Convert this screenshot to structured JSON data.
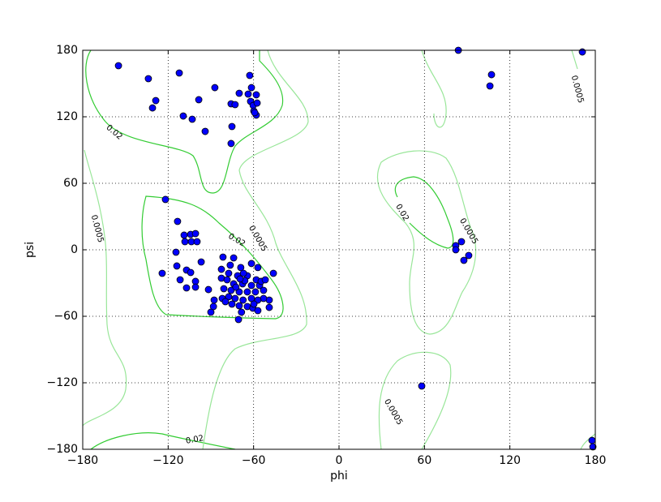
{
  "chart_data": {
    "type": "scatter",
    "x_label": "phi",
    "y_label": "psi",
    "xlim": [
      -180,
      180
    ],
    "ylim": [
      -180,
      180
    ],
    "xticks": [
      {
        "value": -180,
        "label": "−180"
      },
      {
        "value": -120,
        "label": "−120"
      },
      {
        "value": -60,
        "label": "−60"
      },
      0,
      60,
      120,
      180
    ],
    "yticks": [
      {
        "value": -180,
        "label": "−180"
      },
      {
        "value": -120,
        "label": "−120"
      },
      {
        "value": -60,
        "label": "−60"
      },
      0,
      60,
      120,
      180
    ],
    "grid": true,
    "contours": [
      {
        "level": 0.02,
        "color": "#33cc33"
      },
      {
        "level": 0.0005,
        "color": "#99e699"
      }
    ],
    "series": [
      {
        "color": "#0000ff",
        "x": [
          -154.9,
          -133.9,
          -131,
          -128.7,
          -112.2,
          -109.4,
          -103.1,
          -98.5,
          -94,
          -87.2,
          -75.8,
          -73,
          -70.1,
          -75.2,
          -75.8,
          -62.7,
          -61.5,
          -63.8,
          -62.1,
          -58.1,
          -60.3,
          -57.5,
          -59.8,
          -58.1,
          -59.2,
          -121.9,
          -113.4,
          -108.8,
          -104.2,
          -100.8,
          -108.2,
          -103.7,
          -99.7,
          -114.5,
          -113.9,
          -124.2,
          -107.1,
          -104.2,
          -111.6,
          -107.1,
          -100.8,
          -100.8,
          -96.8,
          -91.7,
          -87.7,
          -90,
          -88.2,
          -82.6,
          -82.6,
          -80.9,
          -70.6,
          -46.1,
          -82,
          -77.5,
          -49,
          -49,
          -53,
          -74,
          -81.5,
          -61.5,
          -57,
          -76.4,
          -69,
          -71.2,
          -64.4,
          -58.1,
          -78.6,
          -74,
          -67.7,
          -61.5,
          -55.8,
          -75.8,
          -70.1,
          -64.4,
          -58.7,
          -53,
          -73,
          -67.4,
          -61.5,
          -57,
          -70.1,
          -64.4,
          -60.5,
          -57,
          -68.5,
          -54.7,
          -51.8,
          -67.1,
          -77.5,
          -72.4,
          -66.2,
          -59.8,
          -75.2,
          -79.8,
          -69.5,
          83.8,
          107.1,
          106,
          170.9,
          86,
          82,
          82,
          91.1,
          87.7,
          58.1,
          177.7,
          178.3
        ],
        "values": [
          166.1,
          154.4,
          128,
          134.6,
          159.5,
          120.7,
          117.8,
          135.4,
          106.8,
          146.3,
          131.7,
          131,
          141.2,
          111.2,
          95.9,
          157.3,
          146.3,
          140.5,
          133.9,
          139.8,
          130.2,
          132.4,
          125.1,
          121.5,
          123.7,
          45.4,
          25.6,
          13.2,
          13.9,
          14.6,
          7.3,
          7.3,
          7.3,
          -2.2,
          -14.6,
          -21.2,
          -18.3,
          -20.5,
          -27.1,
          -34.4,
          -28.5,
          -33.7,
          -11,
          -35.9,
          -45.4,
          -56.3,
          -51.2,
          -17.6,
          -25.6,
          -35.1,
          -62.9,
          -21.2,
          -43.9,
          -42.4,
          -45.4,
          -52,
          -43.9,
          -7.3,
          -6.6,
          -12.4,
          -16,
          -13.9,
          -16,
          -23.4,
          -23.4,
          -27.1,
          -27.1,
          -30.7,
          -30.7,
          -32.2,
          -32.2,
          -36.6,
          -38,
          -38,
          -38,
          -36.6,
          -43.9,
          -45.4,
          -43.9,
          -45.4,
          -50.5,
          -51.2,
          -52.7,
          -54.9,
          -56.3,
          -28.5,
          -27.1,
          -21.2,
          -21.2,
          -33.7,
          -27.9,
          -49,
          -49,
          -46.8,
          -26.3,
          180,
          158,
          147.8,
          178.5,
          7.3,
          3.7,
          0,
          -5.1,
          -9.5,
          -122.9,
          -172,
          -177.8
        ]
      }
    ]
  }
}
